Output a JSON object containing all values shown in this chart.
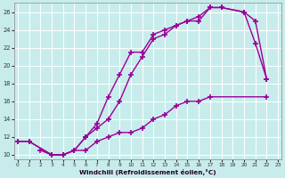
{
  "xlabel": "Windchill (Refroidissement éolien,°C)",
  "bg_color": "#c8ecec",
  "grid_color": "#ffffff",
  "line_color": "#990099",
  "all_series": [
    {
      "comment": "upper line: starts at 0,11.5 rises to peak 17-18,26.5 then drops to 20,26 21,22.5 22,18.5",
      "x": [
        0,
        1,
        3,
        4,
        5,
        6,
        7,
        8,
        9,
        10,
        11,
        12,
        13,
        14,
        15,
        16,
        17,
        18,
        20,
        21,
        22
      ],
      "y": [
        11.5,
        11.5,
        10.0,
        10.0,
        10.5,
        12.0,
        13.0,
        14.0,
        16.0,
        19.0,
        21.0,
        23.0,
        23.5,
        24.5,
        25.0,
        25.0,
        26.5,
        26.5,
        26.0,
        22.5,
        18.5
      ]
    },
    {
      "x": [
        0,
        1,
        3,
        4,
        5,
        6,
        7,
        8,
        9,
        10,
        11,
        12,
        13,
        14,
        15,
        16,
        17,
        18,
        20,
        21,
        22
      ],
      "y": [
        11.5,
        11.5,
        10.0,
        10.0,
        10.5,
        12.0,
        13.5,
        16.5,
        19.0,
        21.5,
        21.5,
        23.5,
        24.0,
        24.5,
        25.0,
        25.5,
        26.5,
        26.5,
        26.0,
        25.0,
        18.5
      ]
    },
    {
      "x": [
        2,
        3,
        4,
        5,
        6,
        7,
        8,
        9,
        10,
        11,
        12,
        13,
        14,
        15,
        16,
        17,
        22
      ],
      "y": [
        10.5,
        10.0,
        10.0,
        10.5,
        10.5,
        11.5,
        12.0,
        12.5,
        12.5,
        13.0,
        14.0,
        14.5,
        15.5,
        16.0,
        16.0,
        16.5,
        16.5
      ]
    }
  ],
  "ylim": [
    9.5,
    27
  ],
  "xlim": [
    -0.3,
    23.3
  ],
  "yticks": [
    10,
    12,
    14,
    16,
    18,
    20,
    22,
    24,
    26
  ],
  "xticks": [
    0,
    1,
    2,
    3,
    4,
    5,
    6,
    7,
    8,
    9,
    10,
    11,
    12,
    13,
    14,
    15,
    16,
    17,
    18,
    19,
    20,
    21,
    22,
    23
  ],
  "marker": "+",
  "markersize": 5,
  "linewidth": 1.0
}
